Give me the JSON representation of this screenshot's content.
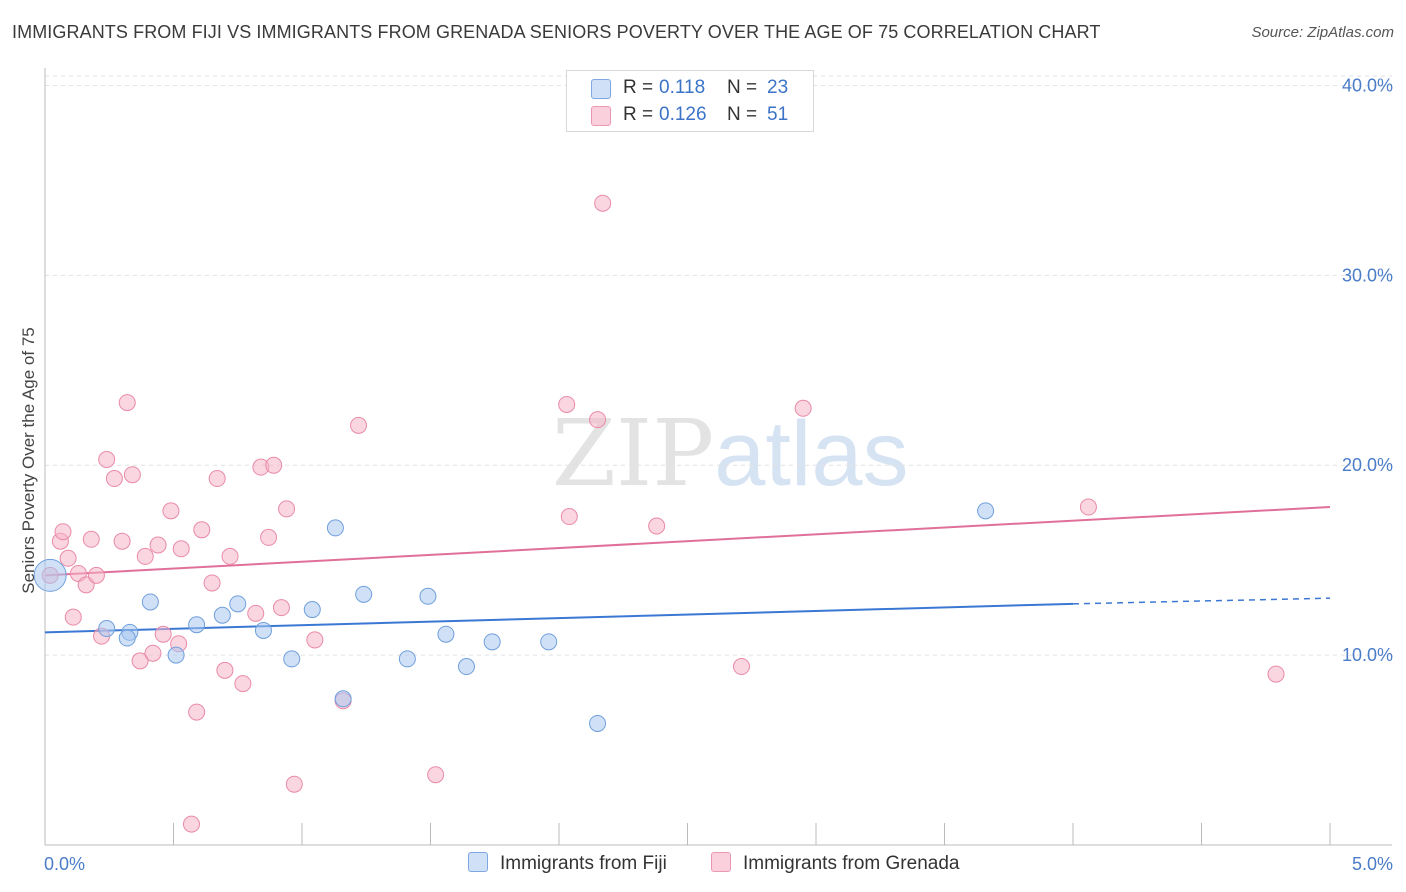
{
  "title": "IMMIGRANTS FROM FIJI VS IMMIGRANTS FROM GRENADA SENIORS POVERTY OVER THE AGE OF 75 CORRELATION CHART",
  "source": "Source: ZipAtlas.com",
  "watermark": {
    "zip": "ZIP",
    "atlas": "atlas"
  },
  "legend": {
    "rows": [
      {
        "r_label": "R =",
        "r_value": "0.118",
        "n_label": "N =",
        "n_value": "23",
        "color": "#a9c8f0"
      },
      {
        "r_label": "R =",
        "r_value": "0.126",
        "n_label": "N =",
        "n_value": "51",
        "color": "#f6b5c8"
      }
    ]
  },
  "bottom_legend": {
    "fiji": "Immigrants from Fiji",
    "grenada": "Immigrants from Grenada"
  },
  "chart_data": {
    "type": "scatter",
    "title": "IMMIGRANTS FROM FIJI VS IMMIGRANTS FROM GRENADA SENIORS POVERTY OVER THE AGE OF 75 CORRELATION CHART",
    "xlabel": "",
    "ylabel": "Seniors Poverty Over the Age of 75",
    "xlim": [
      0,
      5.0
    ],
    "ylim": [
      0,
      40.5
    ],
    "x_tick_labels": [
      "0.0%",
      "5.0%"
    ],
    "y_ticks": [
      10,
      20,
      30,
      40
    ],
    "y_tick_labels": [
      "10.0%",
      "20.0%",
      "30.0%",
      "40.0%"
    ],
    "series": [
      {
        "name": "Immigrants from Fiji",
        "color": "#a9c8f0",
        "stroke": "#6f9fdc",
        "line_color": "#3b78d4",
        "trend": {
          "x0": 0,
          "y0": 11.2,
          "x1": 4.0,
          "y1": 12.7,
          "dash_x1": 5.0,
          "dash_y1": 13.0
        },
        "points": [
          {
            "x": 0.02,
            "y": 14.2,
            "big": true
          },
          {
            "x": 0.24,
            "y": 11.4
          },
          {
            "x": 0.33,
            "y": 11.2
          },
          {
            "x": 0.32,
            "y": 10.9
          },
          {
            "x": 0.41,
            "y": 12.8
          },
          {
            "x": 0.51,
            "y": 10.0
          },
          {
            "x": 0.59,
            "y": 11.6
          },
          {
            "x": 0.69,
            "y": 12.1
          },
          {
            "x": 0.75,
            "y": 12.7
          },
          {
            "x": 0.85,
            "y": 11.3
          },
          {
            "x": 0.96,
            "y": 9.8
          },
          {
            "x": 1.04,
            "y": 12.4
          },
          {
            "x": 1.13,
            "y": 16.7
          },
          {
            "x": 1.16,
            "y": 7.7
          },
          {
            "x": 1.24,
            "y": 13.2
          },
          {
            "x": 1.41,
            "y": 9.8
          },
          {
            "x": 1.49,
            "y": 13.1
          },
          {
            "x": 1.56,
            "y": 11.1
          },
          {
            "x": 1.64,
            "y": 9.4
          },
          {
            "x": 1.74,
            "y": 10.7
          },
          {
            "x": 1.96,
            "y": 10.7
          },
          {
            "x": 2.15,
            "y": 6.4
          },
          {
            "x": 3.66,
            "y": 17.6
          }
        ]
      },
      {
        "name": "Immigrants from Grenada",
        "color": "#f6b5c8",
        "stroke": "#e98aa8",
        "line_color": "#e0709a",
        "trend": {
          "x0": 0,
          "y0": 14.2,
          "x1": 5.0,
          "y1": 17.8
        },
        "points": [
          {
            "x": 0.02,
            "y": 14.2
          },
          {
            "x": 0.06,
            "y": 16.0
          },
          {
            "x": 0.07,
            "y": 16.5
          },
          {
            "x": 0.09,
            "y": 15.1
          },
          {
            "x": 0.11,
            "y": 12.0
          },
          {
            "x": 0.13,
            "y": 14.3
          },
          {
            "x": 0.16,
            "y": 13.7
          },
          {
            "x": 0.18,
            "y": 16.1
          },
          {
            "x": 0.2,
            "y": 14.2
          },
          {
            "x": 0.22,
            "y": 11.0
          },
          {
            "x": 0.24,
            "y": 20.3
          },
          {
            "x": 0.27,
            "y": 19.3
          },
          {
            "x": 0.3,
            "y": 16.0
          },
          {
            "x": 0.32,
            "y": 23.3
          },
          {
            "x": 0.34,
            "y": 19.5
          },
          {
            "x": 0.37,
            "y": 9.7
          },
          {
            "x": 0.39,
            "y": 15.2
          },
          {
            "x": 0.42,
            "y": 10.1
          },
          {
            "x": 0.44,
            "y": 15.8
          },
          {
            "x": 0.46,
            "y": 11.1
          },
          {
            "x": 0.49,
            "y": 17.6
          },
          {
            "x": 0.52,
            "y": 10.6
          },
          {
            "x": 0.53,
            "y": 15.6
          },
          {
            "x": 0.57,
            "y": 1.1
          },
          {
            "x": 0.59,
            "y": 7.0
          },
          {
            "x": 0.61,
            "y": 16.6
          },
          {
            "x": 0.65,
            "y": 13.8
          },
          {
            "x": 0.67,
            "y": 19.3
          },
          {
            "x": 0.7,
            "y": 9.2
          },
          {
            "x": 0.72,
            "y": 15.2
          },
          {
            "x": 0.77,
            "y": 8.5
          },
          {
            "x": 0.82,
            "y": 12.2
          },
          {
            "x": 0.84,
            "y": 19.9
          },
          {
            "x": 0.87,
            "y": 16.2
          },
          {
            "x": 0.89,
            "y": 20.0
          },
          {
            "x": 0.92,
            "y": 12.5
          },
          {
            "x": 0.94,
            "y": 17.7
          },
          {
            "x": 0.97,
            "y": 3.2
          },
          {
            "x": 1.05,
            "y": 10.8
          },
          {
            "x": 1.22,
            "y": 22.1
          },
          {
            "x": 1.16,
            "y": 7.6
          },
          {
            "x": 1.52,
            "y": 3.7
          },
          {
            "x": 2.03,
            "y": 23.2
          },
          {
            "x": 2.04,
            "y": 17.3
          },
          {
            "x": 2.15,
            "y": 22.4
          },
          {
            "x": 2.17,
            "y": 33.8
          },
          {
            "x": 2.38,
            "y": 16.8
          },
          {
            "x": 2.71,
            "y": 9.4
          },
          {
            "x": 2.95,
            "y": 23.0
          },
          {
            "x": 4.06,
            "y": 17.8
          },
          {
            "x": 4.79,
            "y": 9.0
          }
        ]
      }
    ]
  }
}
